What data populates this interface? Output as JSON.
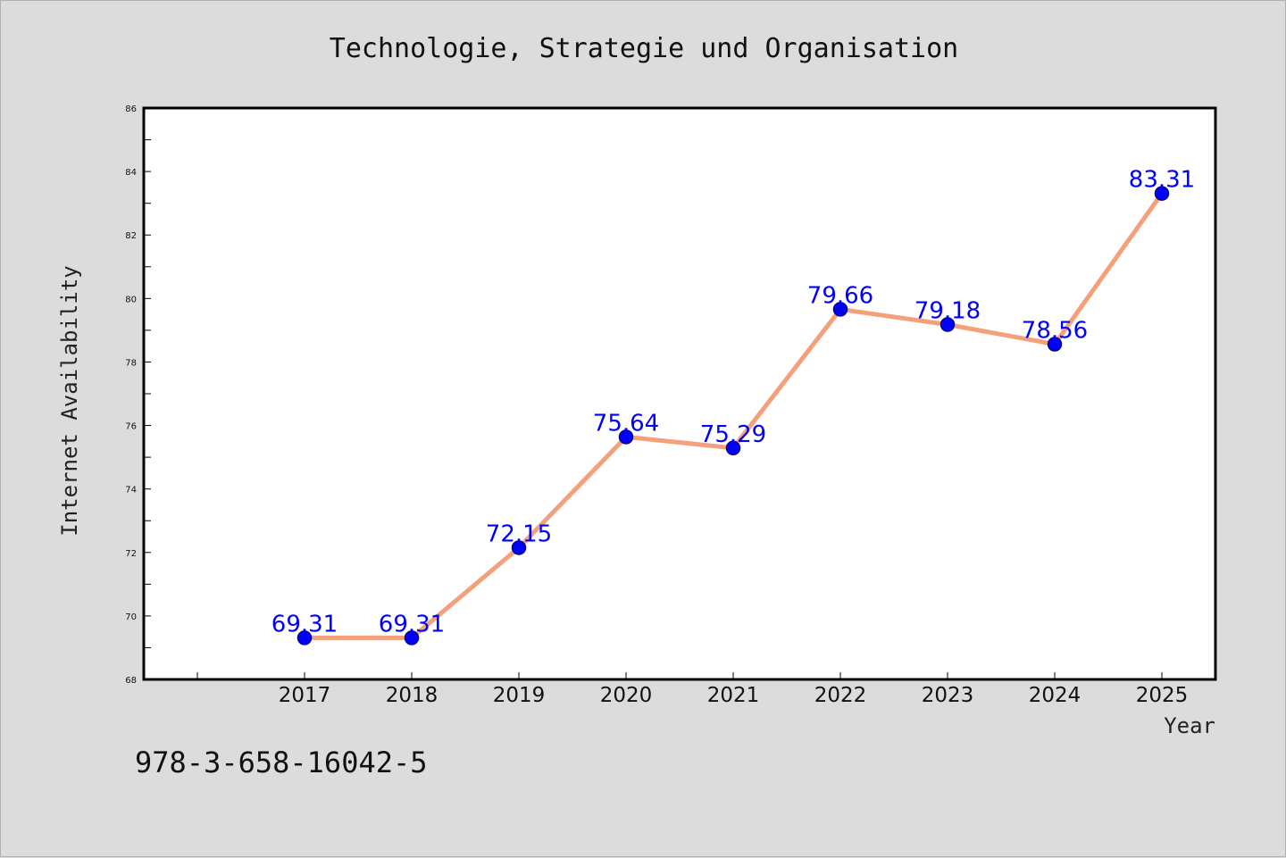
{
  "chart_data": {
    "type": "line",
    "title": "Technologie, Strategie und Organisation",
    "xlabel": "Year",
    "ylabel": "Internet Availability",
    "categories": [
      "2017",
      "2018",
      "2019",
      "2020",
      "2021",
      "2022",
      "2023",
      "2024",
      "2025"
    ],
    "values": [
      69.31,
      69.31,
      72.15,
      75.64,
      75.29,
      79.66,
      79.18,
      78.56,
      83.31
    ],
    "data_labels": [
      "69.31",
      "69.31",
      "72.15",
      "75.64",
      "75.29",
      "79.66",
      "79.18",
      "78.56",
      "83.31"
    ],
    "ylim": [
      68,
      86
    ],
    "yticks": [
      "68",
      "70",
      "72",
      "74",
      "76",
      "78",
      "80",
      "82",
      "84",
      "86"
    ],
    "grid": false,
    "line_color": "#f4a07a",
    "marker_color": "#0000ff",
    "label_color": "#0000ff",
    "background": "#dcdcdc",
    "plot_background": "#ffffff"
  },
  "footer": {
    "isbn": "978-3-658-16042-5"
  }
}
